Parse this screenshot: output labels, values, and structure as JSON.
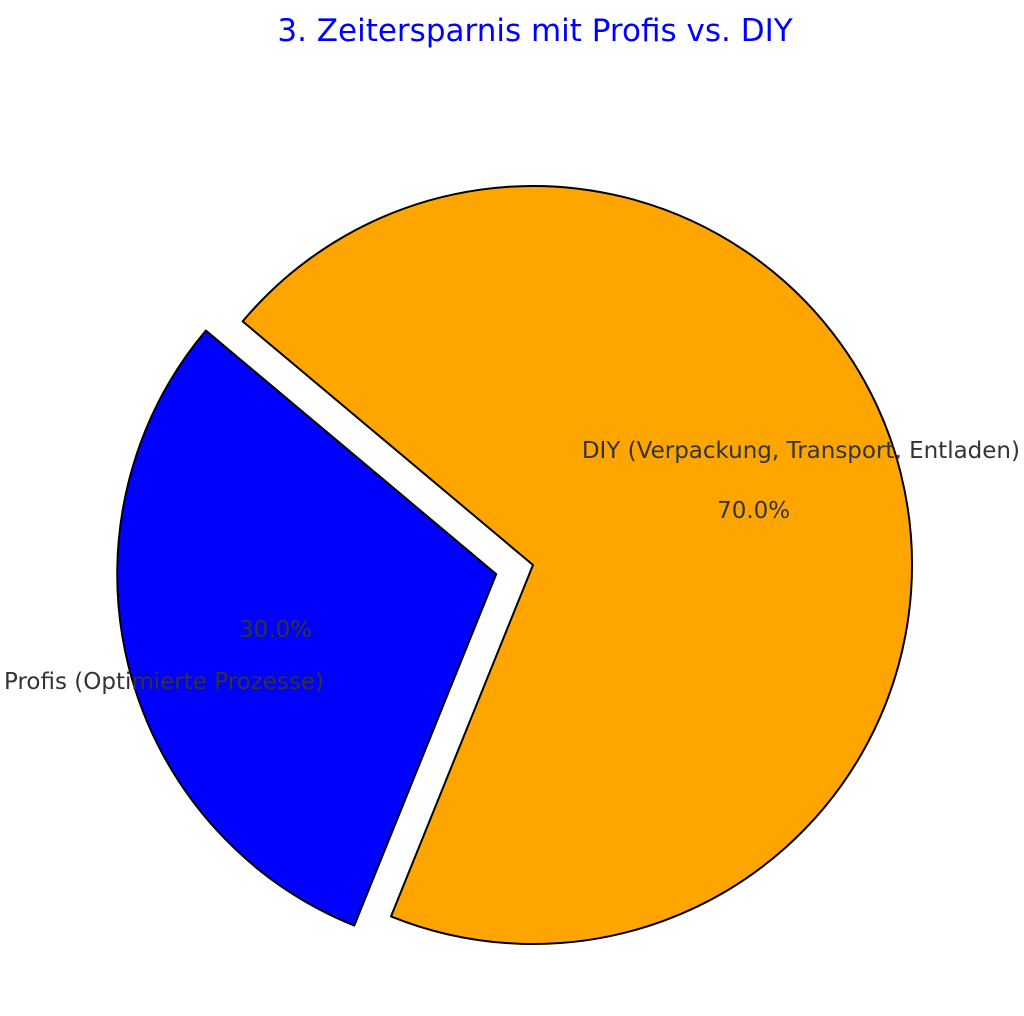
{
  "chart_data": {
    "type": "pie",
    "title": "3. Zeitersparnis mit Profis vs. DIY",
    "title_color": "#0000ff",
    "start_angle_deg": 140,
    "counterclock": true,
    "slices": [
      {
        "label": "Profis (Optimierte Prozesse)",
        "value": 30,
        "pct_label": "30.0%",
        "color": "#0000ff",
        "explode": 0.1
      },
      {
        "label": "DIY (Verpackung, Transport, Entladen)",
        "value": 70,
        "pct_label": "70.0%",
        "color": "#ffa500",
        "explode": 0
      }
    ],
    "edge_color": "#000000",
    "legend": "none"
  }
}
